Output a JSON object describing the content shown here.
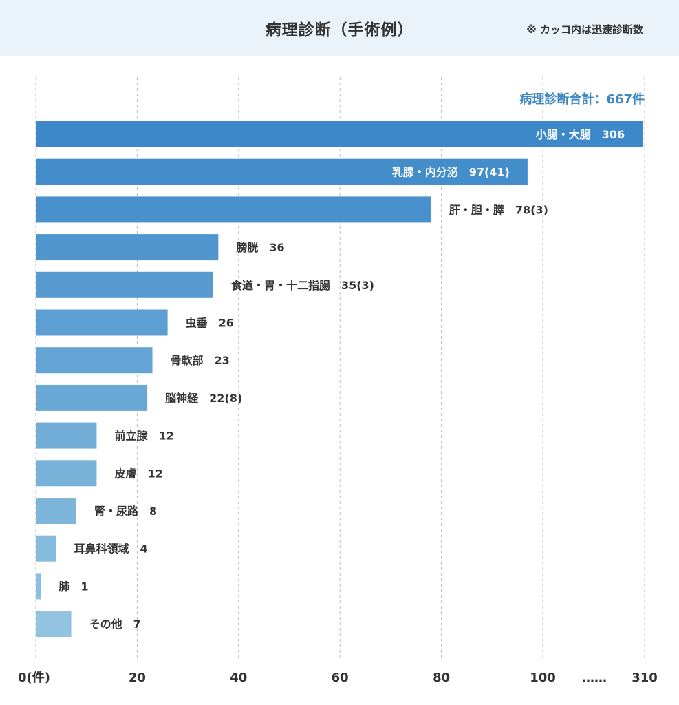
{
  "header": {
    "title": "病理診断（手術例）",
    "note": "※ カッコ内は迅速診断数"
  },
  "total_label": "病理診断合計：667件",
  "colors": {
    "header_bg": "#eaf3fa",
    "accent": "#3d87c4",
    "bar_dark": "#3c88c8",
    "bar_light": "#92c4e1",
    "grid": "#bbbbbb",
    "text": "#333333"
  },
  "chart_data": {
    "type": "bar",
    "orientation": "horizontal",
    "axis_break": "……",
    "x_ticks": [
      {
        "value": 0,
        "label": "0(件)"
      },
      {
        "value": 20,
        "label": "20"
      },
      {
        "value": 40,
        "label": "40"
      },
      {
        "value": 60,
        "label": "60"
      },
      {
        "value": 80,
        "label": "80"
      },
      {
        "value": 100,
        "label": "100"
      },
      {
        "value": 310,
        "label": "310"
      }
    ],
    "grid": true,
    "bars": [
      {
        "category": "小腸・大腸",
        "value": 306,
        "rapid": null,
        "label": "小腸・大腸　306"
      },
      {
        "category": "乳腺・内分泌",
        "value": 97,
        "rapid": 41,
        "label": "乳腺・内分泌　97(41)"
      },
      {
        "category": "肝・胆・膵",
        "value": 78,
        "rapid": 3,
        "label": "肝・胆・膵　78(3)"
      },
      {
        "category": "膀胱",
        "value": 36,
        "rapid": null,
        "label": "膀胱　36"
      },
      {
        "category": "食道・胃・十二指腸",
        "value": 35,
        "rapid": 3,
        "label": "食道・胃・十二指腸　35(3)"
      },
      {
        "category": "虫垂",
        "value": 26,
        "rapid": null,
        "label": "虫垂　26"
      },
      {
        "category": "骨軟部",
        "value": 23,
        "rapid": null,
        "label": "骨軟部　23"
      },
      {
        "category": "脳神経",
        "value": 22,
        "rapid": 8,
        "label": "脳神経　22(8)"
      },
      {
        "category": "前立腺",
        "value": 12,
        "rapid": null,
        "label": "前立腺　12"
      },
      {
        "category": "皮膚",
        "value": 12,
        "rapid": null,
        "label": "皮膚　12"
      },
      {
        "category": "腎・尿路",
        "value": 8,
        "rapid": null,
        "label": "腎・尿路　8"
      },
      {
        "category": "耳鼻科領域",
        "value": 4,
        "rapid": null,
        "label": "耳鼻科領域　4"
      },
      {
        "category": "肺",
        "value": 1,
        "rapid": null,
        "label": "肺　1"
      },
      {
        "category": "その他",
        "value": 7,
        "rapid": null,
        "label": "その他　7"
      }
    ]
  }
}
